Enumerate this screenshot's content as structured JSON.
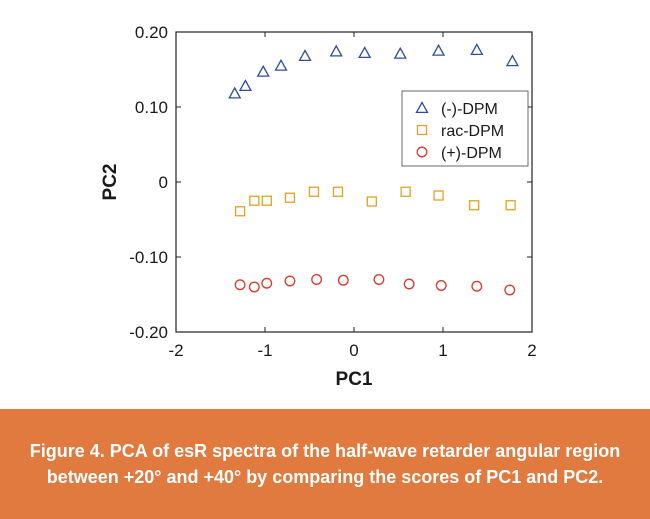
{
  "chart_data": {
    "type": "scatter",
    "xlabel": "PC1",
    "ylabel": "PC2",
    "xlim": [
      -2,
      2
    ],
    "ylim": [
      -0.2,
      0.2
    ],
    "x_ticks": [
      "-2",
      "-1",
      "0",
      "1",
      "2"
    ],
    "x_tick_values": [
      -2,
      -1,
      0,
      1,
      2
    ],
    "y_ticks": [
      "0.20",
      "0.10",
      "0",
      "-0.10",
      "-0.20"
    ],
    "y_tick_values": [
      0.2,
      0.1,
      0,
      -0.1,
      -0.2
    ],
    "grid": false,
    "legend_position": "right",
    "series": [
      {
        "name": "(-)-DPM",
        "marker": "triangle",
        "color": "#2f4ea3",
        "x": [
          -1.34,
          -1.22,
          -1.02,
          -0.82,
          -0.55,
          -0.2,
          0.12,
          0.52,
          0.95,
          1.38,
          1.78
        ],
        "y": [
          0.118,
          0.128,
          0.147,
          0.155,
          0.168,
          0.174,
          0.172,
          0.171,
          0.175,
          0.176,
          0.161
        ]
      },
      {
        "name": "rac-DPM",
        "marker": "square",
        "color": "#e1a21f",
        "x": [
          -1.28,
          -1.12,
          -0.98,
          -0.72,
          -0.45,
          -0.18,
          0.2,
          0.58,
          0.95,
          1.35,
          1.76
        ],
        "y": [
          -0.039,
          -0.025,
          -0.025,
          -0.021,
          -0.013,
          -0.013,
          -0.026,
          -0.013,
          -0.018,
          -0.031,
          -0.031
        ]
      },
      {
        "name": "(+)-DPM",
        "marker": "circle",
        "color": "#d63a2a",
        "x": [
          -1.28,
          -1.12,
          -0.98,
          -0.72,
          -0.42,
          -0.12,
          0.28,
          0.62,
          0.98,
          1.38,
          1.75
        ],
        "y": [
          -0.137,
          -0.14,
          -0.135,
          -0.132,
          -0.13,
          -0.131,
          -0.13,
          -0.136,
          -0.138,
          -0.139,
          -0.144
        ]
      }
    ]
  },
  "caption": "Figure 4. PCA of esR spectra of the half-wave retarder angular region between +20° and +40° by comparing the scores of PC1 and PC2."
}
